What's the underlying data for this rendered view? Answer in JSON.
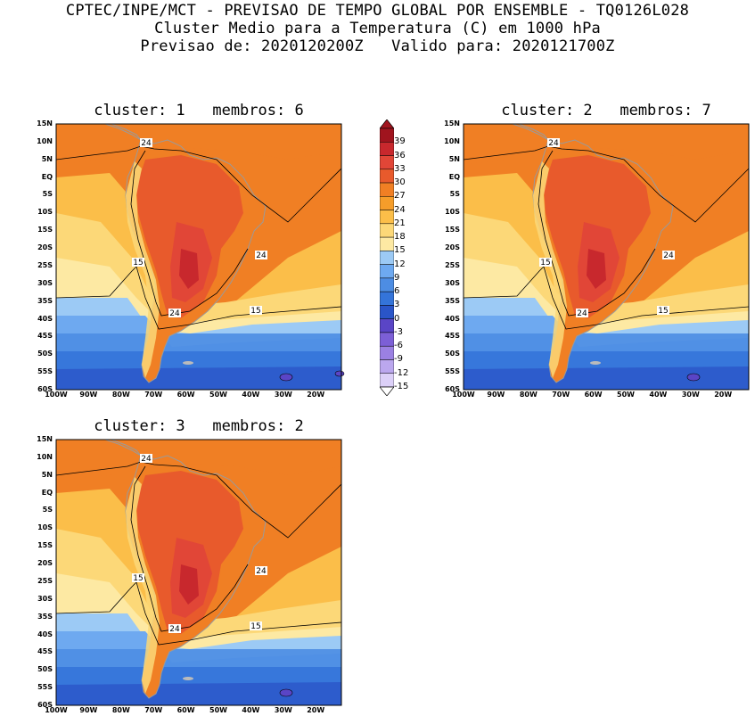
{
  "header": {
    "line1": "CPTEC/INPE/MCT - PREVISAO DE TEMPO GLOBAL POR ENSEMBLE - TQ0126L028",
    "line2": "Cluster Medio para a Temperatura (C) em 1000 hPa",
    "line3": "Previsao de: 2020120200Z   Valido para: 2020121700Z"
  },
  "panels": [
    {
      "title": "cluster: 1   membros: 6"
    },
    {
      "title": "cluster: 2   membros: 7"
    },
    {
      "title": "cluster: 3   membros: 2"
    }
  ],
  "map": {
    "lat_labels": [
      "15N",
      "10N",
      "5N",
      "EQ",
      "5S",
      "10S",
      "15S",
      "20S",
      "25S",
      "30S",
      "35S",
      "40S",
      "45S",
      "50S",
      "55S",
      "60S"
    ],
    "lon_labels": [
      "100W",
      "90W",
      "80W",
      "70W",
      "60W",
      "50W",
      "40W",
      "30W",
      "20W"
    ],
    "contour_labels": {
      "c24": "24",
      "c15": "15"
    }
  },
  "colorbar": {
    "labels": [
      "39",
      "36",
      "33",
      "30",
      "27",
      "24",
      "21",
      "18",
      "15",
      "12",
      "9",
      "6",
      "3",
      "0",
      "-3",
      "-6",
      "-9",
      "-12",
      "-15"
    ],
    "colors": [
      "#a0141e",
      "#c8282d",
      "#e14637",
      "#e85a2c",
      "#f07f24",
      "#f59d2a",
      "#fbbe49",
      "#fcd878",
      "#fde9a3",
      "#9ccaf5",
      "#6ea9f0",
      "#4d8de3",
      "#3474d9",
      "#2a55c8",
      "#5a45c6",
      "#7c5fd6",
      "#9b80e2",
      "#bba7ee",
      "#dcd0f8"
    ],
    "ticks_shown": [
      "39",
      "36",
      "33",
      "30",
      "27",
      "24",
      "21",
      "18",
      "15",
      "12",
      "9",
      "6",
      "3",
      "0",
      "-3",
      "-6",
      "-9",
      "-12",
      "-15"
    ]
  }
}
